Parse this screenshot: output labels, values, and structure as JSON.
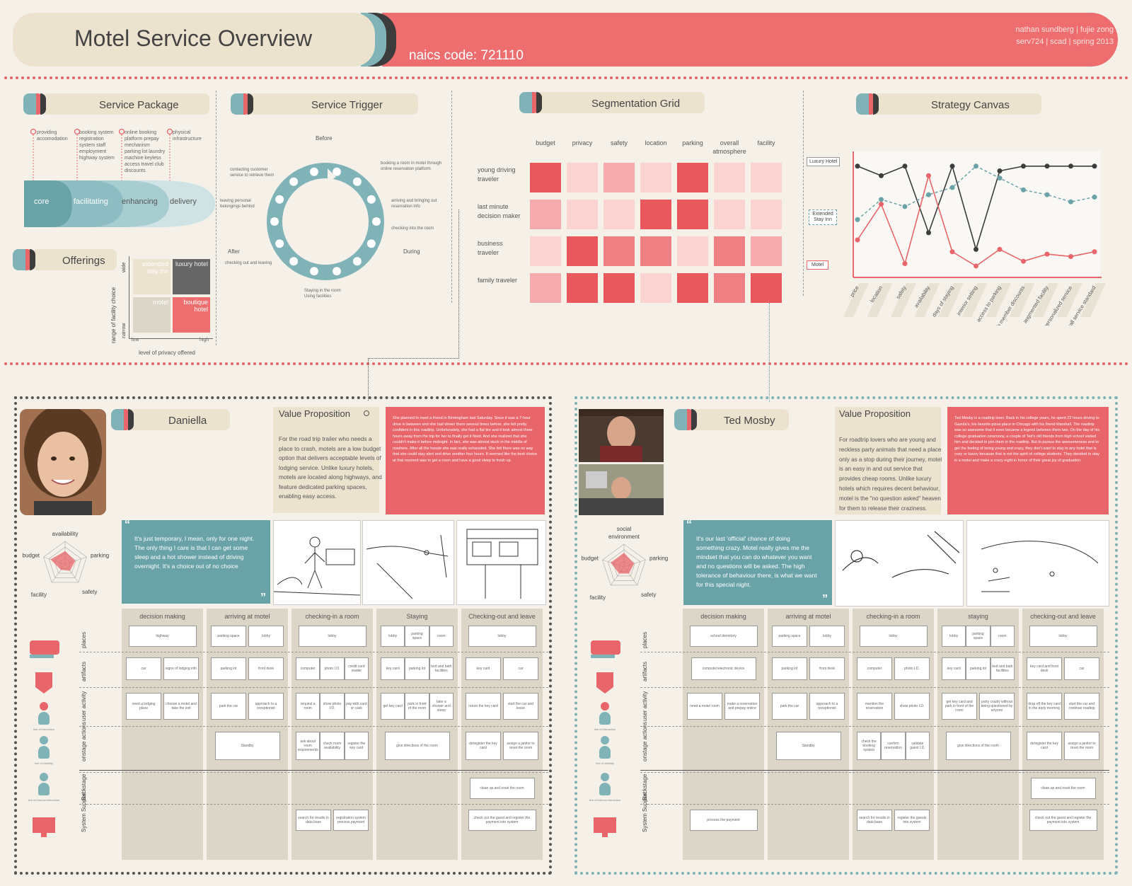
{
  "header": {
    "title": "Motel Service Overview",
    "naics": "naics code: 721110",
    "authors": "nathan sundberg | fujie zong",
    "course": "serv724 | scad | spring 2013"
  },
  "service_package": {
    "title": "Service Package",
    "notes": [
      "providing accomodation",
      "booking system registration system staff employment highway system",
      "online booking platform prepay mechanism parking lot laundry machine keyless access travel club discounts",
      "physical infrastructure"
    ],
    "layers": [
      "core",
      "facilitating",
      "enhancing",
      "delivery"
    ]
  },
  "offerings": {
    "title": "Offerings",
    "cells": [
      "extended stay inn",
      "luxury hotel",
      "motel",
      "boutique hotel"
    ],
    "y_label": "range of facility choice",
    "y_high": "wide",
    "y_low": "narrow",
    "x_label": "level of privacy offered",
    "x_low": "low",
    "x_high": "high"
  },
  "service_trigger": {
    "title": "Service Trigger",
    "before": "Before",
    "after": "After",
    "during": "During",
    "notes": [
      "contacting customer service to retrieve them",
      "leaving personal belongings behind",
      "checking out and leaving",
      "Staying in the room Using facilities",
      "booking a room in motel through online reservation platform",
      "arriving and bringing out reservation info",
      "checking into the room"
    ]
  },
  "segmentation": {
    "title": "Segmentation Grid",
    "columns": [
      "budget",
      "privacy",
      "safety",
      "location",
      "parking",
      "overall atmosphere",
      "facility"
    ],
    "rows": [
      "young driving traveler",
      "last minute decision maker",
      "business traveler",
      "family traveler"
    ],
    "intensity": [
      [
        4,
        1,
        2,
        1,
        4,
        1,
        1
      ],
      [
        2,
        1,
        1,
        4,
        4,
        1,
        1
      ],
      [
        1,
        4,
        3,
        3,
        1,
        3,
        2
      ],
      [
        2,
        4,
        4,
        1,
        4,
        3,
        4
      ]
    ],
    "palette": [
      "#f9e2e0",
      "#fbd4d2",
      "#f5abac",
      "#ee8084",
      "#e8585d"
    ]
  },
  "strategy": {
    "title": "Strategy Canvas",
    "legend": [
      "Luxury Hotel",
      "Extended Stay Inn",
      "Motel"
    ],
    "factors": [
      "price",
      "location",
      "safety",
      "availability",
      "days of staying",
      "interior setting",
      "access to parking",
      "club member discounts",
      "augmented facility",
      "personalized service",
      "overall service standard"
    ]
  },
  "chart_data": {
    "type": "line",
    "title": "Strategy Canvas",
    "categories": [
      "price",
      "location",
      "safety",
      "availability",
      "days of staying",
      "interior setting",
      "access to parking",
      "club member discounts",
      "augmented facility",
      "personalized service",
      "overall service standard"
    ],
    "ylim": [
      0,
      10
    ],
    "series": [
      {
        "name": "Luxury Hotel",
        "color": "#3c3c3c",
        "values": [
          9.0,
          8.2,
          9.0,
          3.4,
          9.0,
          2.0,
          8.6,
          9.0,
          9.0,
          9.0,
          9.0
        ]
      },
      {
        "name": "Extended Stay Inn",
        "color": "#69a3a8",
        "values": [
          4.5,
          6.2,
          5.6,
          6.6,
          7.2,
          9.0,
          8.0,
          7.0,
          6.6,
          6.0,
          6.4
        ]
      },
      {
        "name": "Motel",
        "color": "#e8656a",
        "values": [
          2.8,
          5.8,
          0.8,
          8.2,
          1.8,
          0.6,
          2.0,
          1.0,
          1.6,
          1.4,
          1.8
        ]
      }
    ]
  },
  "persona1": {
    "name": "Daniella",
    "vp_title": "Value Proposition",
    "vp_text": "For the road trip trailer who needs a place to crash, motels are a low budget option that delivers acceptable levels of lodging service. Unlike luxury hotels, motels are located along highways, and feature dedicated parking spaces, enabling easy access.",
    "story": "She planned to meet a friend in Birmingham last Saturday. Since it was a 7-hour drive in between and she had driven there several times before, she felt pretty confident in this roadtrip. Unfortunately, she had a flat tire and it took almost three hours away from the trip for her to finally get it fixed. And she realized that she couldn't make it before midnight. In fact, she was almost stuck in the middle of nowhere. After all the hassle she was really exhausted. She felt there was no way that she could stay alert and drive another four hours. It seemed like the best choice at that moment was to get a room and have a good sleep to fresh up.",
    "quote": "It's just temporary, I mean, only for one night. The only thing I care is that I can get some sleep and a hot shower instead of driving overnight. It's a choice out of no choice",
    "radar": [
      "availability",
      "parking",
      "safety",
      "facility",
      "budget"
    ],
    "radar_values": [
      0.55,
      0.45,
      0.35,
      0.3,
      0.65
    ]
  },
  "persona2": {
    "name": "Ted Mosby",
    "vp_title": "Value Proposition",
    "vp_text": "For roadtrip lovers who are young and reckless party animals that need a place only as a stop during their journey, motel is an easy in and out service that provides cheap rooms. Unlike luxury hotels which requires decent behaviour, motel is the \"no question asked\" heaven for them to release their craziness.",
    "story": "Ted Mosby is a roadtrip lover. Back in his college years, he spent 22 hours driving to Gazola's, his favorite pizza place in Chicago with his friend Marshall. The roadtrip was so awesome that it even became a legend between them two. On the day of his college graduation ceremony, a couple of Ted's old friends from high school visited him and decided to join them in the roadtrip. But to pursue the awesomeness and to get the feeling of being young and crazy, they don't want to stay in any hotel that is cozy or luxury because that is not the spirit of college students. They decided to stay in a motel and make a crazy night in honor of their great joy of graduation.",
    "quote": "It's our last 'official' chance of doing something crazy. Motel really gives me the mindset that you can do whatever you want and no questions will be asked. The high tolerance of behaviour there, is what we want for this special night.",
    "radar": [
      "social environment",
      "parking",
      "safety",
      "facility",
      "budget"
    ],
    "radar_values": [
      0.6,
      0.45,
      0.35,
      0.35,
      0.6
    ]
  },
  "blueprint": {
    "phases": [
      "decision making",
      "arriving at motel",
      "checking-in a room",
      "Staying",
      "Checking-out and leave"
    ],
    "rows": [
      "places",
      "artifacts",
      "user activity",
      "onstage actions",
      "Backstage",
      "System Support"
    ],
    "p1": {
      "places": [
        [
          "highway"
        ],
        [
          "parking space",
          "lobby"
        ],
        [
          "lobby"
        ],
        [
          "lobby",
          "parking space",
          "room"
        ],
        [
          "lobby"
        ]
      ],
      "artifacts": [
        [
          "car",
          "signs of lodging info"
        ],
        [
          "parking lot",
          "front desk"
        ],
        [
          "computer",
          "photo I.D.",
          "credit card reader"
        ],
        [
          "key card",
          "parking lot",
          "bed and bath facilities"
        ],
        [
          "key card",
          "car"
        ]
      ],
      "user": [
        [
          "need a lodging place",
          "choose a motel and take the exit"
        ],
        [
          "park the car",
          "approach to a receptionist"
        ],
        [
          "request a room",
          "show photo I.D.",
          "pay with card or cash"
        ],
        [
          "get key card",
          "park in front of the room",
          "take a shower and sleep"
        ],
        [
          "return the key card",
          "start the car and leave"
        ]
      ],
      "onstage": [
        [],
        [
          "Standby"
        ],
        [
          "ask about room requirements",
          "check room availability",
          "register the key card"
        ],
        [
          "give directions of the room"
        ],
        [
          "deregister the key card",
          "assign a janitor to reset the room"
        ]
      ],
      "backstage": [
        [],
        [],
        [],
        [],
        [
          "clean up and reset the room"
        ]
      ],
      "system": [
        [],
        [],
        [
          "search for results in data base",
          "registration system process payment"
        ],
        [],
        [
          "check out the guest and register the payment into system"
        ]
      ]
    },
    "p2": {
      "phases": [
        "decision making",
        "arriving at motel",
        "checking-in a room",
        "staying",
        "checking-out and leave"
      ],
      "places": [
        [
          "school dormitory"
        ],
        [
          "parking space",
          "lobby"
        ],
        [
          "lobby"
        ],
        [
          "lobby",
          "parking space",
          "room"
        ],
        [
          "lobby"
        ]
      ],
      "artifacts": [
        [
          "computer/electronic device"
        ],
        [
          "parking lot",
          "front desk"
        ],
        [
          "computer",
          "photo I.D."
        ],
        [
          "key card",
          "parking lot",
          "bed and bath facilities"
        ],
        [
          "key card and front desk",
          "car"
        ]
      ],
      "user": [
        [
          "need a motel room",
          "make a reservation and prepay online"
        ],
        [
          "park the car",
          "approach to a receptionist"
        ],
        [
          "mention the reservation",
          "show photo I.D."
        ],
        [
          "get key card and park in front of the room",
          "party crazily without being questioned by anyone"
        ],
        [
          "drop off the key card in the early morning",
          "start the car and continue roadtrip"
        ]
      ],
      "onstage": [
        [],
        [
          "Standby"
        ],
        [
          "check the booking system",
          "confirm reservation",
          "validate guest I.D."
        ],
        [
          "give directions of the room"
        ],
        [
          "deregister the key card",
          "assign a janitor to reset the room"
        ]
      ],
      "backstage": [
        [],
        [],
        [],
        [],
        [
          "clean up and reset the room"
        ]
      ],
      "system": [
        [
          "process the payment"
        ],
        [],
        [
          "search for results in data base",
          "register the guests into system"
        ],
        [],
        [
          "check out the guest and register the payment into system"
        ]
      ]
    },
    "icon_labels": [
      "line of interaction",
      "line of visibility",
      "line of internal interaction"
    ]
  }
}
